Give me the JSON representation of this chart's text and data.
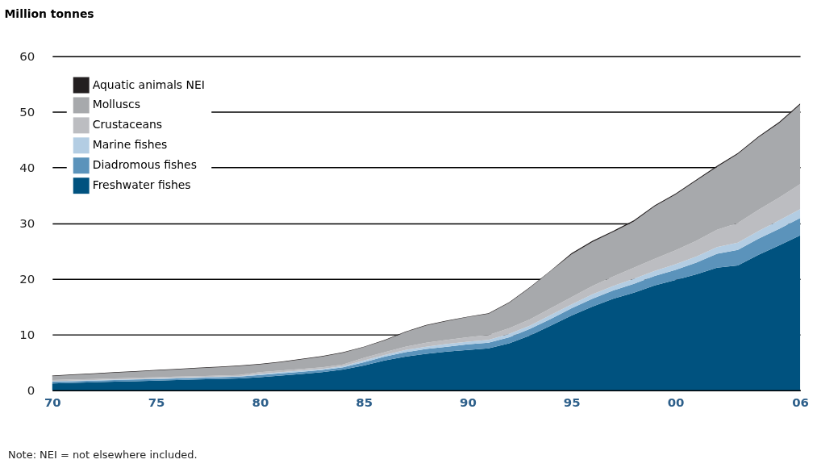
{
  "chart_data": {
    "type": "area",
    "stacked": true,
    "ylabel": "Million tonnes",
    "x": [
      1970,
      1971,
      1972,
      1973,
      1974,
      1975,
      1976,
      1977,
      1978,
      1979,
      1980,
      1981,
      1982,
      1983,
      1984,
      1985,
      1986,
      1987,
      1988,
      1989,
      1990,
      1991,
      1992,
      1993,
      1994,
      1995,
      1996,
      1997,
      1998,
      1999,
      2000,
      2001,
      2002,
      2003,
      2004,
      2005,
      2006
    ],
    "xlim": [
      1970,
      2006
    ],
    "xticks": [
      {
        "value": 1970,
        "label": "70"
      },
      {
        "value": 1975,
        "label": "75"
      },
      {
        "value": 1980,
        "label": "80"
      },
      {
        "value": 1985,
        "label": "85"
      },
      {
        "value": 1990,
        "label": "90"
      },
      {
        "value": 1995,
        "label": "95"
      },
      {
        "value": 2000,
        "label": "00"
      },
      {
        "value": 2006,
        "label": "06"
      }
    ],
    "ylim": [
      0,
      60
    ],
    "yticks": [
      0,
      10,
      20,
      30,
      40,
      50,
      60
    ],
    "grid": "y",
    "legend": "top left",
    "series": [
      {
        "name": "Freshwater fishes",
        "color": "#00527f",
        "values": [
          1.2,
          1.3,
          1.4,
          1.5,
          1.6,
          1.7,
          1.8,
          1.9,
          2.0,
          2.1,
          2.3,
          2.6,
          2.9,
          3.2,
          3.7,
          4.4,
          5.3,
          6.0,
          6.5,
          6.9,
          7.2,
          7.5,
          8.4,
          9.8,
          11.6,
          13.4,
          15.0,
          16.4,
          17.5,
          18.8,
          19.8,
          20.8,
          22.0,
          22.4,
          24.3,
          26.0,
          27.8
        ]
      },
      {
        "name": "Diadromous fishes",
        "color": "#5b93bb",
        "values": [
          0.3,
          0.3,
          0.3,
          0.3,
          0.3,
          0.3,
          0.3,
          0.3,
          0.3,
          0.3,
          0.4,
          0.4,
          0.4,
          0.4,
          0.4,
          0.6,
          0.7,
          0.8,
          0.9,
          0.9,
          1.0,
          1.0,
          1.1,
          1.2,
          1.2,
          1.3,
          1.4,
          1.5,
          1.6,
          1.7,
          1.8,
          2.1,
          2.5,
          2.8,
          2.9,
          3.0,
          3.1
        ]
      },
      {
        "name": "Marine fishes",
        "color": "#b3cde3",
        "values": [
          0.1,
          0.1,
          0.1,
          0.1,
          0.1,
          0.1,
          0.1,
          0.1,
          0.1,
          0.1,
          0.2,
          0.2,
          0.2,
          0.2,
          0.2,
          0.3,
          0.3,
          0.4,
          0.4,
          0.5,
          0.5,
          0.5,
          0.6,
          0.6,
          0.7,
          0.7,
          0.8,
          0.8,
          0.9,
          0.9,
          1.0,
          1.1,
          1.2,
          1.3,
          1.4,
          1.5,
          1.6
        ]
      },
      {
        "name": "Crustaceans",
        "color": "#bcbdc1",
        "values": [
          0.2,
          0.2,
          0.2,
          0.2,
          0.2,
          0.2,
          0.2,
          0.2,
          0.2,
          0.2,
          0.3,
          0.3,
          0.3,
          0.3,
          0.3,
          0.5,
          0.5,
          0.6,
          0.7,
          0.7,
          0.8,
          0.9,
          1.0,
          1.1,
          1.2,
          1.3,
          1.5,
          1.7,
          2.0,
          2.2,
          2.5,
          2.8,
          3.1,
          3.5,
          3.8,
          4.1,
          4.5
        ]
      },
      {
        "name": "Molluscs",
        "color": "#a7a9ac",
        "values": [
          0.7,
          0.8,
          0.9,
          1.0,
          1.1,
          1.2,
          1.3,
          1.4,
          1.5,
          1.6,
          1.4,
          1.5,
          1.7,
          1.9,
          2.1,
          1.9,
          2.1,
          2.6,
          3.1,
          3.4,
          3.6,
          3.8,
          4.6,
          5.7,
          6.7,
          7.7,
          7.9,
          8.0,
          8.3,
          9.4,
          10.0,
          10.8,
          11.3,
          12.4,
          13.0,
          13.4,
          14.3
        ]
      },
      {
        "name": "Aquatic animals NEI",
        "color": "#231f20",
        "values": [
          0.1,
          0.1,
          0.1,
          0.1,
          0.1,
          0.1,
          0.1,
          0.1,
          0.1,
          0.1,
          0.1,
          0.1,
          0.1,
          0.1,
          0.1,
          0.1,
          0.1,
          0.1,
          0.1,
          0.1,
          0.1,
          0.1,
          0.1,
          0.1,
          0.1,
          0.2,
          0.2,
          0.2,
          0.2,
          0.2,
          0.2,
          0.2,
          0.2,
          0.2,
          0.2,
          0.2,
          0.2
        ]
      }
    ],
    "annotations": [
      "Note: NEI = not elsewhere included."
    ]
  }
}
